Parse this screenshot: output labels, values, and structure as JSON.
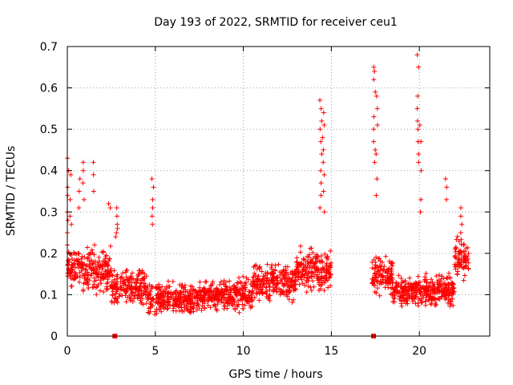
{
  "chart_data": {
    "type": "scatter",
    "title": "Day 193 of 2022, SRMTID for receiver ceu1",
    "xlabel": "GPS time / hours",
    "ylabel": "SRMTID / TECUs",
    "xlim": [
      0,
      24
    ],
    "ylim": [
      0,
      0.7
    ],
    "grid": true,
    "marker": "+",
    "color": "#ff0000",
    "xticks": [
      0,
      5,
      10,
      15,
      20
    ],
    "yticks": [
      0,
      0.1,
      0.2,
      0.3,
      0.4,
      0.5,
      0.6,
      0.7
    ],
    "xtick_labels": [
      "0",
      "5",
      "10",
      "15",
      "20"
    ],
    "ytick_labels": [
      "0",
      "0.1",
      "0.2",
      "0.3",
      "0.4",
      "0.5",
      "0.6",
      "0.7"
    ],
    "zero_markers": [
      2.7,
      17.4
    ],
    "series": [
      {
        "name": "SRMTID",
        "spikes": [
          {
            "x": 0.05,
            "values": [
              0.43,
              0.4,
              0.36,
              0.34,
              0.3,
              0.28,
              0.25,
              0.22
            ]
          },
          {
            "x": 0.2,
            "values": [
              0.39,
              0.33,
              0.29,
              0.27
            ]
          },
          {
            "x": 0.7,
            "values": [
              0.38,
              0.35,
              0.31
            ]
          },
          {
            "x": 0.9,
            "values": [
              0.42,
              0.4,
              0.37,
              0.33
            ]
          },
          {
            "x": 1.5,
            "values": [
              0.42,
              0.39,
              0.35
            ]
          },
          {
            "x": 2.4,
            "values": [
              0.32,
              0.31
            ]
          },
          {
            "x": 2.8,
            "values": [
              0.31,
              0.29,
              0.27,
              0.26,
              0.25,
              0.24
            ]
          },
          {
            "x": 4.85,
            "values": [
              0.38,
              0.36,
              0.33,
              0.31,
              0.29,
              0.27
            ]
          },
          {
            "x": 14.4,
            "values": [
              0.57,
              0.55,
              0.52,
              0.5,
              0.47,
              0.44,
              0.4,
              0.37,
              0.34,
              0.31
            ]
          },
          {
            "x": 14.55,
            "values": [
              0.54,
              0.51,
              0.48,
              0.45,
              0.42,
              0.39,
              0.35,
              0.3
            ]
          },
          {
            "x": 17.45,
            "values": [
              0.65,
              0.64,
              0.62,
              0.59,
              0.53,
              0.5,
              0.47,
              0.45,
              0.42
            ]
          },
          {
            "x": 17.6,
            "values": [
              0.58,
              0.55,
              0.51,
              0.44,
              0.38,
              0.34
            ]
          },
          {
            "x": 19.9,
            "values": [
              0.68,
              0.65,
              0.58,
              0.55,
              0.52,
              0.5,
              0.47,
              0.44,
              0.42
            ]
          },
          {
            "x": 20.05,
            "values": [
              0.51,
              0.47,
              0.4,
              0.33,
              0.3
            ]
          },
          {
            "x": 21.5,
            "values": [
              0.38,
              0.36,
              0.33
            ]
          },
          {
            "x": 22.4,
            "values": [
              0.31,
              0.29,
              0.27,
              0.25
            ]
          }
        ],
        "background": [
          {
            "x0": 0.0,
            "x1": 2.5,
            "mean": 0.16,
            "spread": 0.07
          },
          {
            "x0": 2.5,
            "x1": 4.5,
            "mean": 0.12,
            "spread": 0.06
          },
          {
            "x0": 4.5,
            "x1": 7.5,
            "mean": 0.09,
            "spread": 0.05
          },
          {
            "x0": 7.5,
            "x1": 10.5,
            "mean": 0.1,
            "spread": 0.05
          },
          {
            "x0": 10.5,
            "x1": 13.0,
            "mean": 0.13,
            "spread": 0.06
          },
          {
            "x0": 13.0,
            "x1": 15.0,
            "mean": 0.16,
            "spread": 0.07
          },
          {
            "x0": 17.3,
            "x1": 18.5,
            "mean": 0.15,
            "spread": 0.06
          },
          {
            "x0": 18.5,
            "x1": 20.5,
            "mean": 0.11,
            "spread": 0.05
          },
          {
            "x0": 20.5,
            "x1": 22.0,
            "mean": 0.11,
            "spread": 0.05
          },
          {
            "x0": 22.0,
            "x1": 22.8,
            "mean": 0.19,
            "spread": 0.07
          }
        ]
      }
    ]
  }
}
